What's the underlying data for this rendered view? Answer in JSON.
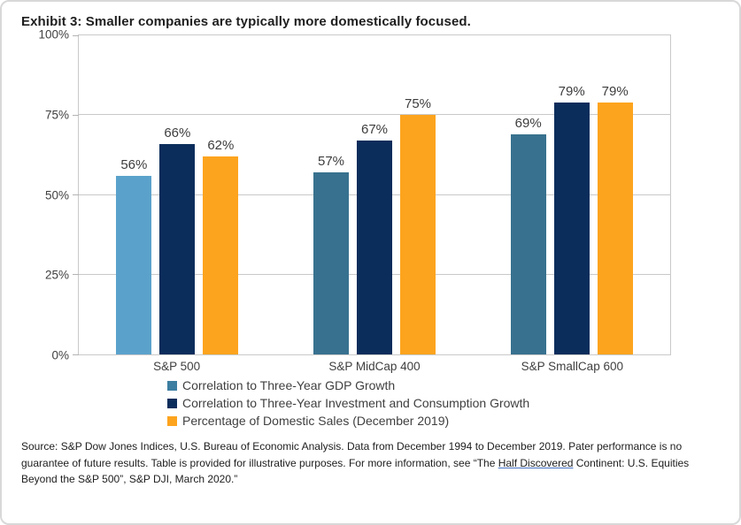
{
  "exhibit": {
    "title": "Exhibit 3:  Smaller companies are typically more domestically focused."
  },
  "chart_data": {
    "type": "bar",
    "title": "Exhibit 3: Smaller companies are typically more domestically focused.",
    "categories": [
      "S&P 500",
      "S&P MidCap 400",
      "S&P SmallCap 600"
    ],
    "series": [
      {
        "name": "Correlation to Three-Year GDP Growth",
        "values": [
          56,
          57,
          69
        ],
        "color": "#3c7ea1",
        "bar_colors": [
          "#5aa2cb",
          "#38718f",
          "#38718f"
        ]
      },
      {
        "name": "Correlation to Three-Year Investment and Consumption Growth",
        "values": [
          66,
          67,
          79
        ],
        "color": "#0b2d5c"
      },
      {
        "name": "Percentage of Domestic Sales (December 2019)",
        "values": [
          62,
          75,
          79
        ],
        "color": "#fda41e"
      }
    ],
    "ylim": [
      0,
      100
    ],
    "yticks": [
      0,
      25,
      50,
      75,
      100
    ],
    "ytick_suffix": "%",
    "value_label_suffix": "%",
    "grid": true,
    "legend_position": "bottom-left",
    "colors": {
      "grid": "#c9c9c9",
      "plot_border": "#c9c9c9",
      "label_text": "#3f3f3f"
    }
  },
  "source": {
    "prefix": "Source: S&P Dow Jones Indices, U.S. Bureau of Economic Analysis.  Data from December 1994 to December 2019.  Pater performance is no guarantee of future results.  Table is provided for illustrative purposes.  For more information, see “The ",
    "link_text": "Half Discovered",
    "suffix": " Continent: U.S. Equities Beyond the S&P 500”, S&P DJI, March 2020.”"
  }
}
